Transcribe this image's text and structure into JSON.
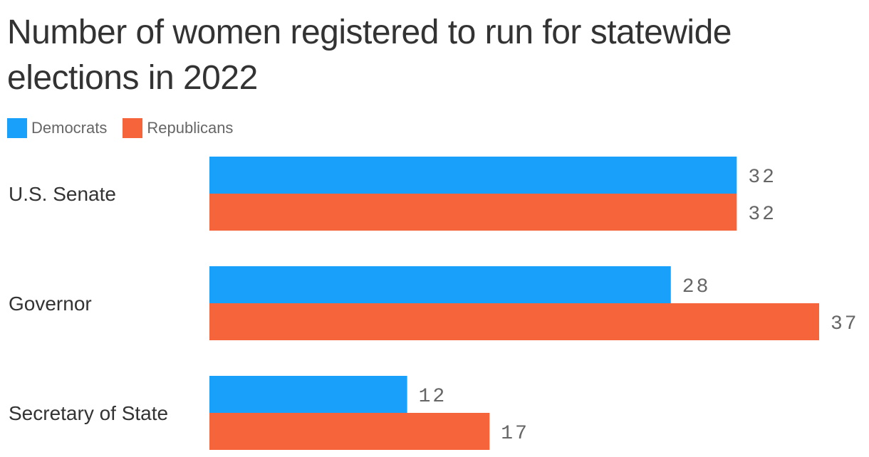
{
  "title": "Number of women registered to run for statewide elections in 2022",
  "legend": [
    {
      "label": "Democrats",
      "color": "#18a0fb"
    },
    {
      "label": "Republicans",
      "color": "#f6643c"
    }
  ],
  "chart_data": {
    "type": "bar",
    "orientation": "horizontal",
    "title": "Number of women registered to run for statewide elections in 2022",
    "categories": [
      "U.S. Senate",
      "Governor",
      "Secretary of State"
    ],
    "series": [
      {
        "name": "Democrats",
        "color": "#18a0fb",
        "values": [
          32,
          28,
          12
        ]
      },
      {
        "name": "Republicans",
        "color": "#f6643c",
        "values": [
          32,
          37,
          17
        ]
      }
    ],
    "xlim": [
      0,
      37
    ],
    "grid": false,
    "legend_position": "top-left"
  }
}
